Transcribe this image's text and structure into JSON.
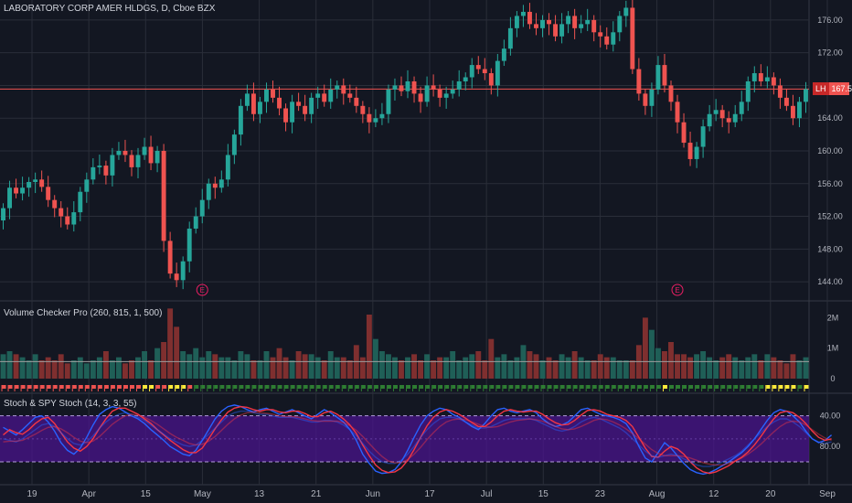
{
  "colors": {
    "bg": "#131722",
    "grid": "#2a2e39",
    "up": "#26a69a",
    "down": "#ef5350",
    "text": "#b2b5be",
    "stoch_k": "#2962ff",
    "stoch_d": "#f23645",
    "band": "#4a148c",
    "vol_up": "#1f5f57",
    "vol_down": "#7f2f2f",
    "flag_red": "#ef5350",
    "flag_yellow": "#ffeb3b",
    "flag_green": "#2e7d32"
  },
  "main": {
    "title": "LABORATORY CORP AMER HLDGS, D, Cboe BZX",
    "price_badge": {
      "symbol": "LH",
      "value": "167.56"
    },
    "current_price": 167.56,
    "earnings_marker": "E"
  },
  "volume_pane": {
    "title": "Volume Checker Pro (260, 815, 1, 500)",
    "ticks": [
      "2M",
      "1M",
      "0"
    ]
  },
  "stoch_pane": {
    "title": "Stoch & SPY Stoch (14, 3, 3, 55)",
    "ticks": [
      "80.00",
      "40.00"
    ],
    "band": [
      20,
      80
    ]
  },
  "x_axis": {
    "labels": [
      "19",
      "Apr",
      "15",
      "May",
      "13",
      "21",
      "Jun",
      "17",
      "Jul",
      "15",
      "23",
      "Aug",
      "12",
      "20",
      "Sep"
    ]
  },
  "chart_data": [
    {
      "type": "candlestick",
      "title": "LABORATORY CORP AMER HLDGS, D, Cboe BZX",
      "x_start_label": "19",
      "ylim": [
        142,
        178
      ],
      "y_ticks": [
        144,
        148,
        152,
        156,
        160,
        164,
        168,
        172,
        176
      ],
      "current_price": 167.56,
      "earnings_after_bars": [
        31,
        105
      ],
      "close": [
        153.0,
        155.5,
        154.8,
        155.5,
        156.2,
        156.5,
        155.6,
        154.0,
        153.0,
        152.0,
        151.0,
        152.5,
        155.0,
        156.5,
        158.0,
        158.2,
        157.0,
        159.5,
        160.0,
        159.5,
        158.0,
        159.5,
        160.5,
        158.5,
        160.0,
        149.0,
        145.0,
        144.2,
        146.5,
        150.5,
        152.0,
        154.0,
        156.0,
        155.5,
        156.5,
        159.5,
        162.0,
        165.5,
        167.0,
        164.5,
        166.0,
        167.5,
        166.5,
        165.2,
        163.5,
        166.0,
        165.5,
        164.5,
        166.5,
        167.0,
        166.0,
        167.5,
        168.0,
        167.0,
        166.5,
        165.5,
        164.5,
        163.5,
        164.0,
        164.5,
        167.5,
        168.0,
        167.3,
        168.5,
        167.0,
        166.0,
        168.0,
        167.5,
        166.5,
        167.0,
        167.5,
        168.5,
        169.0,
        170.5,
        170.0,
        169.5,
        168.0,
        171.0,
        172.5,
        175.0,
        176.5,
        177.0,
        175.5,
        175.0,
        176.0,
        175.5,
        174.0,
        175.5,
        176.5,
        175.0,
        175.5,
        176.0,
        174.5,
        174.0,
        173.0,
        174.5,
        176.5,
        177.5,
        170.0,
        167.0,
        165.5,
        167.5,
        170.5,
        168.0,
        166.0,
        163.5,
        161.0,
        159.0,
        160.5,
        163.0,
        164.5,
        165.0,
        164.0,
        163.5,
        164.5,
        166.0,
        168.5,
        169.5,
        168.5,
        169.0,
        168.0,
        166.5,
        165.5,
        164.0,
        166.0,
        167.56
      ],
      "open": [
        151.5,
        153.0,
        155.5,
        154.8,
        155.5,
        156.2,
        156.5,
        155.6,
        154.0,
        153.0,
        152.0,
        151.0,
        152.5,
        155.0,
        156.5,
        158.0,
        158.2,
        157.0,
        159.5,
        160.0,
        159.5,
        158.0,
        159.5,
        160.5,
        158.5,
        160.0,
        149.0,
        145.0,
        144.2,
        146.5,
        150.5,
        152.0,
        154.0,
        156.0,
        155.5,
        156.5,
        159.5,
        162.0,
        165.5,
        167.0,
        164.5,
        166.0,
        167.5,
        166.5,
        165.2,
        163.5,
        166.0,
        165.5,
        164.5,
        166.5,
        167.0,
        166.0,
        167.5,
        168.0,
        167.0,
        166.5,
        165.5,
        164.5,
        163.5,
        164.0,
        164.5,
        167.5,
        168.0,
        167.3,
        168.5,
        167.0,
        166.0,
        168.0,
        167.5,
        166.5,
        167.0,
        167.5,
        168.5,
        169.0,
        170.5,
        170.0,
        169.5,
        168.0,
        171.0,
        172.5,
        175.0,
        176.5,
        177.0,
        175.5,
        175.0,
        176.0,
        175.5,
        174.0,
        175.5,
        176.5,
        175.0,
        175.5,
        176.0,
        174.5,
        174.0,
        173.0,
        174.5,
        176.5,
        177.5,
        170.0,
        167.0,
        165.5,
        167.5,
        170.5,
        168.0,
        166.0,
        163.5,
        161.0,
        159.0,
        160.5,
        163.0,
        164.5,
        165.0,
        164.0,
        163.5,
        164.5,
        166.0,
        168.5,
        169.5,
        168.5,
        169.0,
        168.0,
        166.5,
        165.5,
        164.0,
        166.0
      ]
    },
    {
      "type": "bar",
      "title": "Volume Checker Pro (260, 815, 1, 500)",
      "ylabel": "",
      "ylim": [
        0,
        2400000
      ],
      "values": [
        800000,
        900000,
        800000,
        700000,
        600000,
        800000,
        600000,
        700000,
        600000,
        800000,
        500000,
        600000,
        700000,
        500000,
        600000,
        700000,
        900000,
        600000,
        700000,
        500000,
        600000,
        700000,
        900000,
        600000,
        1000000,
        1200000,
        2300000,
        1700000,
        900000,
        800000,
        1000000,
        700000,
        900000,
        800000,
        700000,
        700000,
        600000,
        900000,
        800000,
        600000,
        600000,
        900000,
        700000,
        1000000,
        700000,
        600000,
        900000,
        800000,
        800000,
        700000,
        600000,
        900000,
        700000,
        700000,
        600000,
        1100000,
        700000,
        2100000,
        1300000,
        900000,
        800000,
        700000,
        600000,
        700000,
        800000,
        600000,
        800000,
        600000,
        700000,
        700000,
        900000,
        600000,
        700000,
        800000,
        900000,
        600000,
        1300000,
        700000,
        800000,
        600000,
        700000,
        1100000,
        900000,
        800000,
        600000,
        700000,
        600000,
        800000,
        700000,
        900000,
        700000,
        600000,
        600000,
        800000,
        700000,
        700000,
        600000,
        600000,
        600000,
        1100000,
        2000000,
        1600000,
        1000000,
        900000,
        1200000,
        800000,
        800000,
        700000,
        800000,
        900000,
        700000,
        600000,
        700000,
        800000,
        700000,
        600000,
        700000,
        800000,
        600000,
        800000,
        700000,
        600000,
        500000,
        800000,
        600000,
        700000,
        800000,
        600000
      ],
      "flags": [
        "red",
        "red",
        "red",
        "red",
        "red",
        "red",
        "red",
        "red",
        "red",
        "red",
        "red",
        "red",
        "red",
        "red",
        "red",
        "red",
        "red",
        "red",
        "red",
        "red",
        "red",
        "red",
        "yellow",
        "yellow",
        "red",
        "red",
        "yellow",
        "yellow",
        "yellow",
        "red",
        "green",
        "green",
        "green",
        "green",
        "green",
        "green",
        "green",
        "green",
        "green",
        "green",
        "green",
        "green",
        "green",
        "green",
        "green",
        "green",
        "green",
        "green",
        "green",
        "green",
        "green",
        "green",
        "green",
        "green",
        "green",
        "green",
        "green",
        "green",
        "green",
        "green",
        "green",
        "green",
        "green",
        "green",
        "green",
        "green",
        "green",
        "green",
        "green",
        "green",
        "green",
        "green",
        "green",
        "green",
        "green",
        "green",
        "green",
        "green",
        "green",
        "green",
        "green",
        "green",
        "green",
        "green",
        "green",
        "green",
        "green",
        "green",
        "green",
        "green",
        "green",
        "green",
        "green",
        "green",
        "green",
        "green",
        "green",
        "green",
        "green",
        "green",
        "green",
        "green",
        "green",
        "yellow",
        "green",
        "green",
        "green",
        "green",
        "green",
        "green",
        "green",
        "green",
        "green",
        "green",
        "green",
        "green",
        "green",
        "green",
        "green",
        "yellow",
        "yellow",
        "yellow",
        "yellow",
        "yellow",
        "green",
        "yellow",
        "yellow",
        "yellow",
        "yellow",
        "yellow",
        "yellow",
        "yellow"
      ]
    },
    {
      "type": "line",
      "title": "Stoch & SPY Stoch (14, 3, 3, 55)",
      "ylim": [
        -5,
        107
      ],
      "y_ticks": [
        40,
        80
      ],
      "band": [
        20,
        80
      ],
      "series": [
        {
          "values": [
            65,
            60,
            55,
            62,
            70,
            78,
            80,
            72,
            60,
            45,
            35,
            30,
            38,
            52,
            68,
            82,
            88,
            92,
            90,
            85,
            80,
            76,
            70,
            62,
            55,
            48,
            40,
            35,
            30,
            28,
            35,
            48,
            62,
            76,
            86,
            92,
            94,
            92,
            88,
            85,
            88,
            90,
            86,
            82,
            85,
            88,
            84,
            80,
            76,
            82,
            88,
            84,
            78,
            72,
            62,
            48,
            30,
            18,
            8,
            5,
            6,
            10,
            20,
            35,
            52,
            68,
            80,
            86,
            90,
            88,
            82,
            78,
            72,
            66,
            62,
            70,
            80,
            88,
            90,
            86,
            84,
            86,
            88,
            84,
            76,
            70,
            66,
            68,
            72,
            80,
            88,
            90,
            86,
            82,
            80,
            78,
            75,
            70,
            58,
            40,
            25,
            20,
            32,
            45,
            38,
            28,
            18,
            10,
            6,
            4,
            6,
            10,
            15,
            20,
            26,
            32,
            40,
            50,
            62,
            74,
            84,
            88,
            86,
            80,
            72,
            60,
            50,
            45,
            48,
            55
          ]
        },
        {
          "values": [
            55,
            62,
            58,
            56,
            62,
            70,
            76,
            78,
            70,
            58,
            46,
            38,
            34,
            40,
            50,
            64,
            76,
            86,
            90,
            90,
            86,
            82,
            76,
            70,
            62,
            55,
            48,
            42,
            36,
            32,
            32,
            38,
            50,
            63,
            75,
            85,
            90,
            92,
            91,
            88,
            86,
            88,
            88,
            85,
            84,
            86,
            86,
            83,
            79,
            79,
            84,
            86,
            82,
            76,
            68,
            57,
            42,
            28,
            16,
            9,
            6,
            7,
            12,
            22,
            36,
            52,
            67,
            78,
            85,
            88,
            86,
            82,
            77,
            71,
            66,
            66,
            72,
            80,
            86,
            88,
            86,
            85,
            86,
            86,
            82,
            76,
            71,
            68,
            69,
            74,
            81,
            87,
            88,
            86,
            82,
            80,
            78,
            74,
            66,
            52,
            38,
            27,
            26,
            34,
            40,
            37,
            30,
            20,
            12,
            7,
            5,
            7,
            11,
            15,
            21,
            26,
            33,
            42,
            53,
            65,
            76,
            84,
            86,
            84,
            78,
            70,
            60,
            52,
            48,
            50
          ]
        },
        {
          "values": [
            50,
            48,
            46,
            50,
            56,
            62,
            68,
            70,
            66,
            58,
            50,
            44,
            42,
            46,
            54,
            64,
            72,
            78,
            82,
            84,
            82,
            78,
            74,
            68,
            62,
            56,
            50,
            46,
            42,
            40,
            42,
            48,
            56,
            64,
            72,
            80,
            84,
            86,
            86,
            84,
            82,
            82,
            80,
            78,
            78,
            78,
            76,
            74,
            72,
            72,
            74,
            74,
            72,
            68,
            62,
            54,
            44,
            34,
            26,
            20,
            18,
            18,
            22,
            30,
            40,
            52,
            62,
            70,
            76,
            78,
            78,
            76,
            72,
            68,
            64,
            64,
            66,
            70,
            74,
            76,
            76,
            76,
            76,
            74,
            70,
            66,
            62,
            60,
            62,
            66,
            72,
            76,
            78,
            76,
            72,
            68,
            64,
            58,
            50,
            42,
            34,
            28,
            26,
            28,
            30,
            28,
            24,
            20,
            16,
            14,
            14,
            16,
            20,
            24,
            28,
            34,
            42,
            50,
            58,
            66,
            72,
            76,
            76,
            72,
            66,
            58,
            50,
            46,
            44,
            46
          ]
        },
        {
          "values": [
            46,
            47,
            47,
            48,
            52,
            56,
            61,
            65,
            66,
            63,
            58,
            52,
            47,
            45,
            47,
            53,
            61,
            69,
            75,
            80,
            82,
            81,
            78,
            74,
            69,
            63,
            57,
            52,
            48,
            44,
            42,
            43,
            47,
            53,
            61,
            69,
            76,
            81,
            84,
            85,
            84,
            83,
            82,
            80,
            79,
            79,
            78,
            76,
            74,
            73,
            73,
            73,
            73,
            71,
            67,
            61,
            53,
            44,
            35,
            27,
            21,
            19,
            19,
            23,
            30,
            39,
            49,
            58,
            66,
            72,
            75,
            76,
            75,
            72,
            69,
            66,
            65,
            66,
            69,
            72,
            74,
            75,
            76,
            75,
            73,
            70,
            66,
            63,
            62,
            63,
            66,
            70,
            74,
            76,
            75,
            72,
            68,
            63,
            57,
            50,
            43,
            36,
            31,
            28,
            28,
            28,
            27,
            25,
            22,
            19,
            17,
            16,
            16,
            18,
            21,
            25,
            30,
            36,
            43,
            51,
            59,
            66,
            71,
            73,
            72,
            68,
            62,
            56,
            51,
            48
          ]
        }
      ]
    }
  ]
}
